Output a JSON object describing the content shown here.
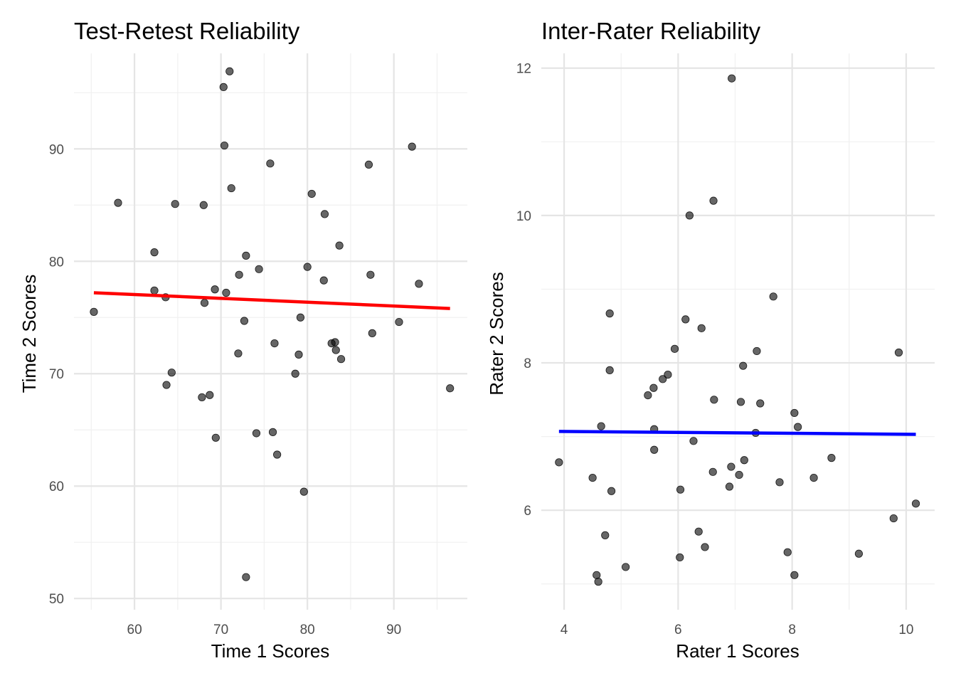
{
  "chart_data": [
    {
      "type": "scatter",
      "title": "Test-Retest Reliability",
      "xlabel": "Time 1 Scores",
      "ylabel": "Time 2 Scores",
      "xlim": [
        53.0,
        98.5
      ],
      "ylim": [
        49.0,
        98.5
      ],
      "xticks": [
        60,
        70,
        80,
        90
      ],
      "yticks": [
        50,
        60,
        70,
        80,
        90
      ],
      "grid": true,
      "point_color": "#000000",
      "trend_color": "#ff0000",
      "trend": {
        "x": [
          55.3,
          96.5
        ],
        "y": [
          77.2,
          75.8
        ]
      },
      "points": {
        "x": [
          55.3,
          58.1,
          62.3,
          62.3,
          63.6,
          63.7,
          64.3,
          64.7,
          67.8,
          68.0,
          68.1,
          68.7,
          69.3,
          69.4,
          70.3,
          70.4,
          70.6,
          71.0,
          71.2,
          72.0,
          72.1,
          72.7,
          72.9,
          72.9,
          74.1,
          74.4,
          75.7,
          76.0,
          76.2,
          76.5,
          78.6,
          79.0,
          79.2,
          79.6,
          80.0,
          80.5,
          81.9,
          82.0,
          82.8,
          83.2,
          83.3,
          83.7,
          83.9,
          87.1,
          87.3,
          87.5,
          90.6,
          92.1,
          92.9,
          96.5
        ],
        "y": [
          75.5,
          85.2,
          80.8,
          77.4,
          76.8,
          69.0,
          70.1,
          85.1,
          67.9,
          85.0,
          76.3,
          68.1,
          77.5,
          64.3,
          95.5,
          90.3,
          77.2,
          96.9,
          86.5,
          71.8,
          78.8,
          74.7,
          51.9,
          80.5,
          64.7,
          79.3,
          88.7,
          64.8,
          72.7,
          62.8,
          70.0,
          71.7,
          75.0,
          59.5,
          79.5,
          86.0,
          78.3,
          84.2,
          72.7,
          72.8,
          72.1,
          81.4,
          71.3,
          88.6,
          78.8,
          73.6,
          74.6,
          90.2,
          78.0,
          68.7
        ]
      }
    },
    {
      "type": "scatter",
      "title": "Inter-Rater Reliability",
      "xlabel": "Rater 1 Scores",
      "ylabel": "Rater 2 Scores",
      "xlim": [
        3.6,
        10.5
      ],
      "ylim": [
        4.65,
        12.2
      ],
      "xticks": [
        4,
        6,
        8,
        10
      ],
      "yticks": [
        6,
        8,
        10,
        12
      ],
      "grid": true,
      "point_color": "#000000",
      "trend_color": "#0000ff",
      "trend": {
        "x": [
          3.91,
          10.17
        ],
        "y": [
          7.07,
          7.03
        ]
      },
      "points": {
        "x": [
          3.91,
          4.5,
          4.57,
          4.6,
          4.65,
          4.72,
          4.8,
          4.8,
          4.83,
          5.08,
          5.47,
          5.57,
          5.58,
          5.58,
          5.73,
          5.82,
          5.94,
          6.03,
          6.04,
          6.13,
          6.2,
          6.27,
          6.36,
          6.41,
          6.47,
          6.61,
          6.62,
          6.63,
          6.9,
          6.93,
          6.94,
          7.07,
          7.1,
          7.14,
          7.16,
          7.36,
          7.38,
          7.44,
          7.67,
          7.78,
          7.92,
          8.04,
          8.04,
          8.1,
          8.38,
          8.69,
          9.17,
          9.78,
          9.87,
          10.17
        ],
        "y": [
          6.65,
          6.44,
          5.12,
          5.03,
          7.14,
          5.66,
          8.67,
          7.9,
          6.26,
          5.23,
          7.56,
          7.66,
          7.1,
          6.82,
          7.78,
          7.84,
          8.19,
          5.36,
          6.28,
          8.59,
          10.0,
          6.94,
          5.71,
          8.47,
          5.5,
          6.52,
          10.2,
          7.5,
          6.32,
          6.59,
          11.86,
          6.48,
          7.47,
          7.96,
          6.68,
          7.05,
          8.16,
          7.45,
          8.9,
          6.38,
          5.43,
          7.32,
          5.12,
          7.13,
          6.44,
          6.71,
          5.41,
          5.89,
          8.14,
          6.09
        ]
      }
    }
  ]
}
